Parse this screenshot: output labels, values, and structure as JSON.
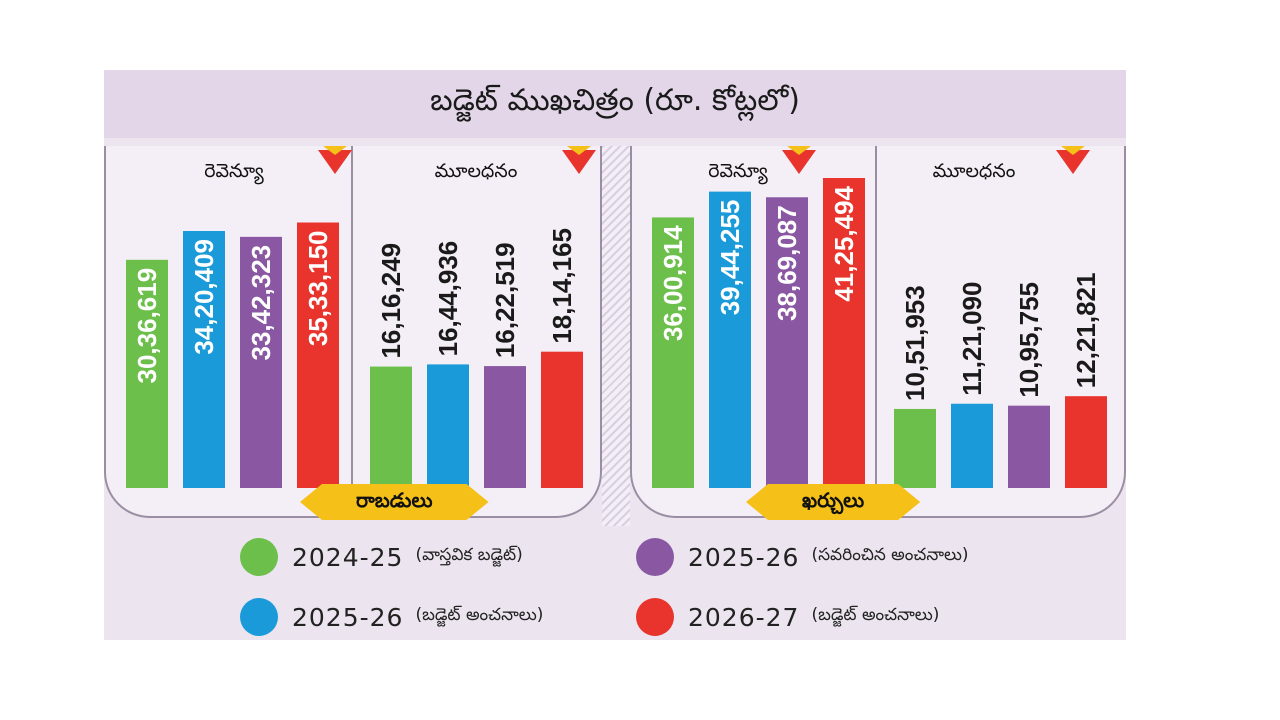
{
  "title": "బడ్జెట్ ముఖచిత్రం (రూ. కోట్లలో)",
  "sections": {
    "income_banner": "రాబడులు",
    "expenditure_banner": "ఖర్చులు",
    "revenue_label": "రెవెన్యూ",
    "capital_label": "మూలధనం"
  },
  "colors": {
    "green": "#6bbf4a",
    "blue": "#1a9ad9",
    "purple": "#8a58a3",
    "red": "#e8342c",
    "yellow": "#f5c118"
  },
  "legend": [
    {
      "year": "2024-25",
      "desc": "(వాస్తవిక బడ్జెట్)",
      "color": "#6bbf4a"
    },
    {
      "year": "2025-26",
      "desc": "(సవరించిన అంచనాలు)",
      "color": "#8a58a3"
    },
    {
      "year": "2025-26",
      "desc": "(బడ్జెట్ అంచనాలు)",
      "color": "#1a9ad9"
    },
    {
      "year": "2026-27",
      "desc": "(బడ్జెట్ అంచనాలు)",
      "color": "#e8342c"
    }
  ],
  "chart_data": {
    "type": "bar",
    "title": "బడ్జెట్ ముఖచిత్రం (రూ. కోట్లలో)",
    "series_names": [
      "2024-25 (వాస్తవిక బడ్జెట్)",
      "2025-26 (బడ్జెట్ అంచనాలు)",
      "2025-26 (సవరించిన అంచనాలు)",
      "2026-27 (బడ్జెట్ అంచనాలు)"
    ],
    "series_colors": [
      "#6bbf4a",
      "#1a9ad9",
      "#8a58a3",
      "#e8342c"
    ],
    "ylim": [
      0,
      4500000
    ],
    "groups": [
      {
        "section": "రాబడులు",
        "category": "రెవెన్యూ",
        "values": [
          3036619,
          3420409,
          3342323,
          3533150
        ],
        "labels": [
          "30,36,619",
          "34,20,409",
          "33,42,323",
          "35,33,150"
        ]
      },
      {
        "section": "రాబడులు",
        "category": "మూలధనం",
        "values": [
          1616249,
          1644936,
          1622519,
          1814165
        ],
        "labels": [
          "16,16,249",
          "16,44,936",
          "16,22,519",
          "18,14,165"
        ]
      },
      {
        "section": "ఖర్చులు",
        "category": "రెవెన్యూ",
        "values": [
          3600914,
          3944255,
          3869087,
          4125494
        ],
        "labels": [
          "36,00,914",
          "39,44,255",
          "38,69,087",
          "41,25,494"
        ]
      },
      {
        "section": "ఖర్చులు",
        "category": "మూలధనం",
        "values": [
          1051953,
          1121090,
          1095755,
          1221821
        ],
        "labels": [
          "10,51,953",
          "11,21,090",
          "10,95,755",
          "12,21,821"
        ]
      }
    ]
  }
}
